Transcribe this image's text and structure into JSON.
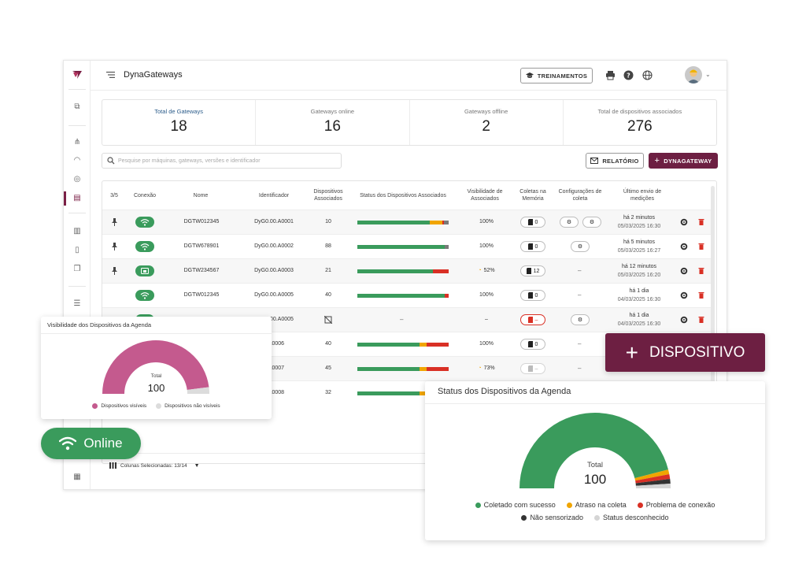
{
  "app": {
    "title": "DynaGateways"
  },
  "header": {
    "training_label": "TREINAMENTOS"
  },
  "stats": [
    {
      "label": "Total de Gateways",
      "value": "18"
    },
    {
      "label": "Gateways online",
      "value": "16"
    },
    {
      "label": "Gateways offline",
      "value": "2"
    },
    {
      "label": "Total de dispositivos associados",
      "value": "276"
    }
  ],
  "search": {
    "placeholder": "Pesquise por máquinas, gateways, versões e identificador"
  },
  "toolbar": {
    "report_label": "RELATÓRIO",
    "add_gateway_label": "DYNAGATEWAY"
  },
  "table": {
    "columns": [
      "3/5",
      "Conexão",
      "Nome",
      "Identificador",
      "Dispositivos Associados",
      "Status dos Dispositivos Associados",
      "Visibilidade de Associados",
      "Coletas na Memória",
      "Configurações de coleta",
      "Último envio de medições"
    ],
    "rows": [
      {
        "pinned": true,
        "conn": "wifi",
        "name": "DGTW012345",
        "id": "DyG0.00.A0001",
        "devices": "10",
        "bar": [
          0.79,
          0.14,
          0.02,
          0.05
        ],
        "visibility": "100%",
        "vis_warn": false,
        "memory": "0",
        "mem_style": "normal",
        "config": "two",
        "last": "há 2 minutos",
        "date": "05/03/2025 16:30"
      },
      {
        "pinned": true,
        "conn": "wifi",
        "name": "DGTW678901",
        "id": "DyG0.00.A0002",
        "devices": "88",
        "bar": [
          0.96,
          0,
          0,
          0.04
        ],
        "visibility": "100%",
        "vis_warn": false,
        "memory": "0",
        "mem_style": "normal",
        "config": "one",
        "last": "há 5 minutos",
        "date": "05/03/2025 16:27"
      },
      {
        "pinned": true,
        "conn": "ethernet",
        "name": "DGTW234567",
        "id": "DyG0.00.A0003",
        "devices": "21",
        "bar": [
          0.83,
          0,
          0.17,
          0
        ],
        "visibility": "52%",
        "vis_warn": true,
        "memory": "12",
        "mem_style": "normal",
        "config": "none",
        "last": "há 12 minutos",
        "date": "05/03/2025 16:20"
      },
      {
        "pinned": false,
        "conn": "wifi",
        "name": "DGTW012345",
        "id": "DyG0.00.A0005",
        "devices": "40",
        "bar": [
          0.96,
          0,
          0.04,
          0
        ],
        "visibility": "100%",
        "vis_warn": false,
        "memory": "0",
        "mem_style": "normal",
        "config": "none",
        "last": "há 1 dia",
        "date": "04/03/2025 16:30"
      },
      {
        "pinned": false,
        "conn": "wifi",
        "name": "DGTW012345",
        "id": "DyG0.00.A0005",
        "devices": "",
        "bar": null,
        "visibility": "–",
        "vis_warn": false,
        "memory": "–",
        "mem_style": "red",
        "config": "one",
        "last": "há 1 dia",
        "date": "04/03/2025 16:30"
      },
      {
        "pinned": false,
        "conn": "wifi",
        "name": "",
        "id": "0.A0006",
        "devices": "40",
        "bar": [
          0.68,
          0.08,
          0.24,
          0
        ],
        "visibility": "100%",
        "vis_warn": false,
        "memory": "0",
        "mem_style": "normal",
        "config": "none",
        "last": "",
        "date": ""
      },
      {
        "pinned": false,
        "conn": "wifi",
        "name": "",
        "id": "0.A0007",
        "devices": "45",
        "bar": [
          0.68,
          0.08,
          0.24,
          0
        ],
        "visibility": "73%",
        "vis_warn": true,
        "memory": "–",
        "mem_style": "dim",
        "config": "none",
        "last": "",
        "date": ""
      },
      {
        "pinned": false,
        "conn": "wifi",
        "name": "",
        "id": "0.A0008",
        "devices": "32",
        "bar": [
          0.68,
          0.08,
          0.24,
          0
        ],
        "visibility": "",
        "vis_warn": false,
        "memory": "",
        "mem_style": "none",
        "config": "none",
        "last": "",
        "date": ""
      }
    ],
    "dash": "–"
  },
  "footer": {
    "columns_selected": "Colunas Selecionadas: 13/14"
  },
  "visibility_chart": {
    "title": "Visibilidade dos Dispositivos da Agenda",
    "total_label": "Total",
    "total_value": "100",
    "legend": [
      {
        "name": "Dispositivos visíveis",
        "color": "#c45a8e",
        "value": 96
      },
      {
        "name": "Dispositivos não visíveis",
        "color": "#dcdcdc",
        "value": 4
      }
    ]
  },
  "status_chart": {
    "title": "Status dos Dispositivos da Agenda",
    "total_label": "Total",
    "total_value": "100",
    "legend": [
      {
        "name": "Coletado com sucesso",
        "color": "#3a9b5c",
        "value": 92
      },
      {
        "name": "Atraso na coleta",
        "color": "#f0a500",
        "value": 2
      },
      {
        "name": "Problema de conexão",
        "color": "#d93025",
        "value": 2
      },
      {
        "name": "Não sensorizado",
        "color": "#333333",
        "value": 2
      },
      {
        "name": "Status desconhecido",
        "color": "#d5d5d5",
        "value": 2
      }
    ]
  },
  "overlays": {
    "online_label": "Online",
    "dispositivo_label": "DISPOSITIVO"
  },
  "colors": {
    "brand": "#6d1f42",
    "green": "#3a9b5c",
    "yellow": "#f0a500",
    "red": "#d93025",
    "grey": "#7a7a7a"
  }
}
